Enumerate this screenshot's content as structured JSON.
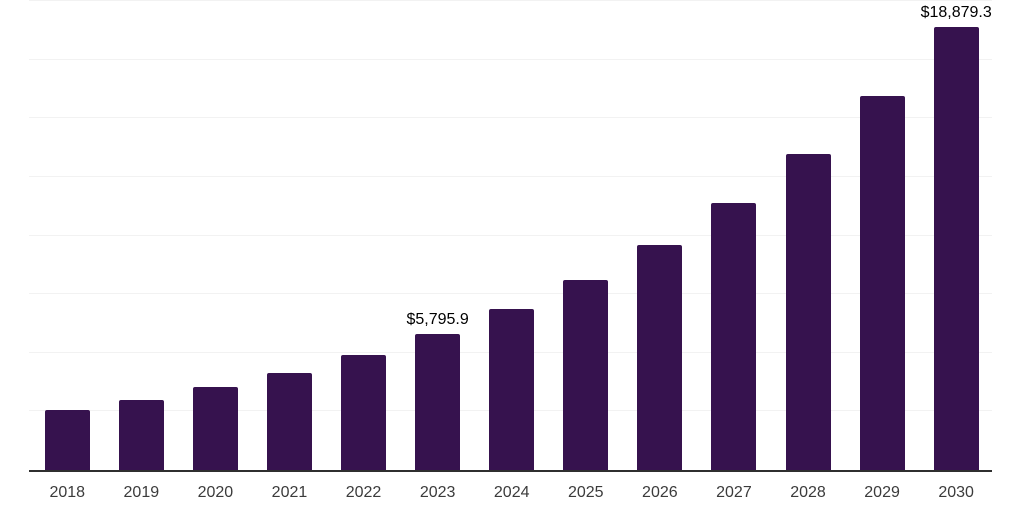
{
  "chart_data": {
    "type": "bar",
    "title": "",
    "xlabel": "",
    "ylabel": "",
    "categories": [
      "2018",
      "2019",
      "2020",
      "2021",
      "2022",
      "2023",
      "2024",
      "2025",
      "2026",
      "2027",
      "2028",
      "2029",
      "2030"
    ],
    "values": [
      2560,
      2990,
      3540,
      4140,
      4920,
      5795.9,
      6860,
      8110,
      9590,
      11390,
      13480,
      15960,
      18879.3
    ],
    "data_labels": [
      {
        "category": "2023",
        "text": "$5,795.9"
      },
      {
        "category": "2030",
        "text": "$18,879.3"
      }
    ],
    "ylim": [
      0,
      20000
    ],
    "gridline_step": 2500,
    "grid": "on",
    "legend": "none",
    "y_axis_tick_labels": "none",
    "colors": {
      "bar": "#36124e",
      "gridline": "#f2f2f2",
      "axis_line": "#2f2f2f",
      "tick_label": "#3b3b3b",
      "data_label": "#000000",
      "background": "#ffffff"
    }
  }
}
